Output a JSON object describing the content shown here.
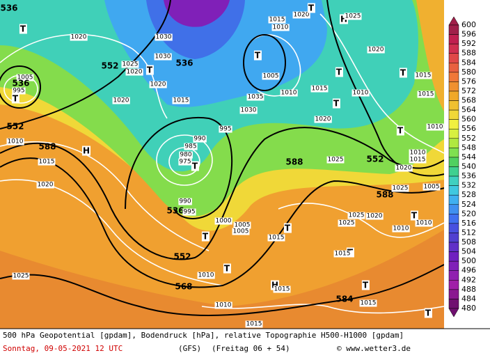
{
  "map": {
    "labels": [
      "536",
      "T",
      "1020",
      "1030",
      "1030",
      "552",
      "1025",
      "1020",
      "T",
      "536",
      "1015",
      "1010",
      "1020",
      "T",
      "H",
      "1025",
      "1020",
      "T",
      "1005",
      "T",
      "T",
      "1015",
      "1015",
      "1005",
      "536",
      "995",
      "T",
      "552",
      "1010",
      "588",
      "H",
      "1015",
      "1020",
      "1025",
      "1020",
      "1015",
      "1020",
      "1035",
      "1030",
      "1010",
      "1015",
      "1010",
      "T",
      "1020",
      "995",
      "990",
      "985",
      "980",
      "975",
      "T",
      "552",
      "588",
      "1025",
      "1020",
      "1010",
      "1015",
      "1010",
      "T",
      "588",
      "1025",
      "1005",
      "1020",
      "1025",
      "1025",
      "T",
      "1010",
      "1010",
      "536",
      "995",
      "990",
      "1000",
      "1005",
      "1005",
      "T",
      "T",
      "1015",
      "552",
      "T",
      "1015",
      "T",
      "1010",
      "568",
      "H",
      "1015",
      "T",
      "1015",
      "584",
      "1010",
      "1015",
      "T"
    ],
    "colorbar": [
      600,
      596,
      592,
      588,
      584,
      580,
      576,
      572,
      568,
      564,
      560,
      556,
      552,
      548,
      544,
      540,
      536,
      532,
      528,
      524,
      520,
      516,
      512,
      508,
      504,
      500,
      496,
      492,
      488,
      484,
      480
    ]
  },
  "footer": {
    "line1": "500 hPa Geopotential [gpdam], Bodendruck [hPa], relative Topographie H500-H1000 [gpdam]",
    "date": "Sonntag, 09-05-2021  12 UTC",
    "model": "(GFS)",
    "run": "(Freitag 06 + 54)",
    "credit": "© www.wetter3.de"
  }
}
